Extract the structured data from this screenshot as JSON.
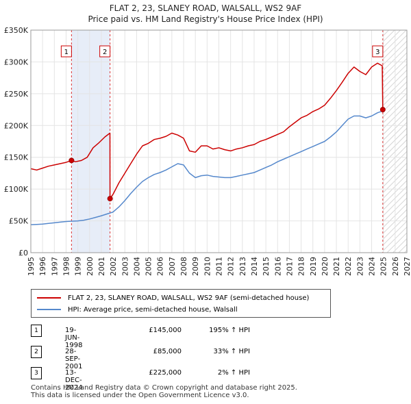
{
  "title_line1": "FLAT 2, 23, SLANEY ROAD, WALSALL, WS2 9AF",
  "title_line2": "Price paid vs. HM Land Registry's House Price Index (HPI)",
  "chart_data": {
    "type": "line",
    "xlim": [
      1995,
      2027
    ],
    "ylim": [
      0,
      350000
    ],
    "y_ticks": [
      0,
      50000,
      100000,
      150000,
      200000,
      250000,
      300000,
      350000
    ],
    "y_tick_labels": [
      "£0",
      "£50K",
      "£100K",
      "£150K",
      "£200K",
      "£250K",
      "£300K",
      "£350K"
    ],
    "x_ticks": [
      1995,
      1996,
      1997,
      1998,
      1999,
      2000,
      2001,
      2002,
      2003,
      2004,
      2005,
      2006,
      2007,
      2008,
      2009,
      2010,
      2011,
      2012,
      2013,
      2014,
      2015,
      2016,
      2017,
      2018,
      2019,
      2020,
      2021,
      2022,
      2023,
      2024,
      2025,
      2026,
      2027
    ],
    "x_tick_labels": [
      "1995",
      "1996",
      "1997",
      "1998",
      "1999",
      "2000",
      "2001",
      "2002",
      "2003",
      "2004",
      "2005",
      "2006",
      "2007",
      "2008",
      "2009",
      "2010",
      "2011",
      "2012",
      "2013",
      "2014",
      "2015",
      "2016",
      "2017",
      "2018",
      "2019",
      "2020",
      "2021",
      "2022",
      "2023",
      "2024",
      "2025",
      "2026",
      "2027"
    ],
    "series": [
      {
        "name": "FLAT 2, 23, SLANEY ROAD, WALSALL, WS2 9AF (semi-detached house)",
        "color": "#cc0000",
        "x": [
          1995.0,
          1995.5,
          1996.0,
          1996.5,
          1997.0,
          1997.5,
          1998.0,
          1998.46,
          1998.8,
          1999.3,
          1999.8,
          2000.3,
          2000.8,
          2001.3,
          2001.73,
          2001.74,
          2002.0,
          2002.5,
          2003.0,
          2003.5,
          2004.0,
          2004.5,
          2005.0,
          2005.5,
          2006.0,
          2006.5,
          2007.0,
          2007.5,
          2008.0,
          2008.5,
          2009.0,
          2009.5,
          2010.0,
          2010.5,
          2011.0,
          2011.5,
          2012.0,
          2012.5,
          2013.0,
          2013.5,
          2014.0,
          2014.5,
          2015.0,
          2015.5,
          2016.0,
          2016.5,
          2017.0,
          2017.5,
          2018.0,
          2018.5,
          2019.0,
          2019.5,
          2020.0,
          2020.5,
          2021.0,
          2021.5,
          2022.0,
          2022.5,
          2023.0,
          2023.5,
          2024.0,
          2024.5,
          2024.9,
          2024.95
        ],
        "values": [
          132000,
          130000,
          133000,
          136000,
          138000,
          140000,
          142000,
          145000,
          143000,
          145000,
          150000,
          165000,
          173000,
          182000,
          188000,
          85000,
          92000,
          110000,
          125000,
          140000,
          155000,
          168000,
          172000,
          178000,
          180000,
          183000,
          188000,
          185000,
          180000,
          160000,
          158000,
          168000,
          168000,
          163000,
          165000,
          162000,
          160000,
          163000,
          165000,
          168000,
          170000,
          175000,
          178000,
          182000,
          186000,
          190000,
          198000,
          205000,
          212000,
          216000,
          222000,
          226000,
          232000,
          243000,
          255000,
          268000,
          282000,
          292000,
          285000,
          280000,
          292000,
          298000,
          294000,
          225000
        ]
      },
      {
        "name": "HPI: Average price, semi-detached house, Walsall",
        "color": "#5588cc",
        "x": [
          1995.0,
          1995.5,
          1996.0,
          1996.5,
          1997.0,
          1997.5,
          1998.0,
          1998.5,
          1999.0,
          1999.5,
          2000.0,
          2000.5,
          2001.0,
          2001.5,
          2002.0,
          2002.5,
          2003.0,
          2003.5,
          2004.0,
          2004.5,
          2005.0,
          2005.5,
          2006.0,
          2006.5,
          2007.0,
          2007.5,
          2008.0,
          2008.5,
          2009.0,
          2009.5,
          2010.0,
          2010.5,
          2011.0,
          2011.5,
          2012.0,
          2012.5,
          2013.0,
          2013.5,
          2014.0,
          2014.5,
          2015.0,
          2015.5,
          2016.0,
          2016.5,
          2017.0,
          2017.5,
          2018.0,
          2018.5,
          2019.0,
          2019.5,
          2020.0,
          2020.5,
          2021.0,
          2021.5,
          2022.0,
          2022.5,
          2023.0,
          2023.5,
          2024.0,
          2024.5,
          2024.95
        ],
        "values": [
          44000,
          44500,
          45000,
          46000,
          47000,
          48000,
          49000,
          49500,
          50000,
          51000,
          53000,
          55500,
          58000,
          61000,
          64000,
          72000,
          82000,
          93000,
          103000,
          112000,
          118000,
          123000,
          126000,
          130000,
          135000,
          140000,
          138000,
          125000,
          118000,
          121000,
          122000,
          120000,
          119000,
          118000,
          118000,
          120000,
          122000,
          124000,
          126000,
          130000,
          134000,
          138000,
          143000,
          147000,
          151000,
          155000,
          159000,
          163000,
          167000,
          171000,
          175000,
          182000,
          190000,
          200000,
          210000,
          215000,
          215000,
          212000,
          215000,
          220000,
          223000
        ]
      }
    ],
    "sale_markers": [
      {
        "label": "1",
        "x": 1998.46,
        "y": 145000
      },
      {
        "label": "2",
        "x": 2001.74,
        "y": 85000
      },
      {
        "label": "3",
        "x": 2024.95,
        "y": 225000
      }
    ],
    "shaded_spans": [
      [
        1998.46,
        2001.74
      ]
    ],
    "forecast_span": [
      2024.95,
      2027
    ],
    "grid": true
  },
  "legend": {
    "entries": [
      {
        "label": "FLAT 2, 23, SLANEY ROAD, WALSALL, WS2 9AF (semi-detached house)",
        "color": "#cc0000"
      },
      {
        "label": "HPI: Average price, semi-detached house, Walsall",
        "color": "#5588cc"
      }
    ]
  },
  "transactions": [
    {
      "num": "1",
      "date": "19-JUN-1998",
      "price": "£145,000",
      "hpi": "195% ↑ HPI"
    },
    {
      "num": "2",
      "date": "28-SEP-2001",
      "price": "£85,000",
      "hpi": "33% ↑ HPI"
    },
    {
      "num": "3",
      "date": "13-DEC-2024",
      "price": "£225,000",
      "hpi": "2% ↑ HPI"
    }
  ],
  "footer_line1": "Contains HM Land Registry data © Crown copyright and database right 2025.",
  "footer_line2": "This data is licensed under the Open Government Licence v3.0."
}
